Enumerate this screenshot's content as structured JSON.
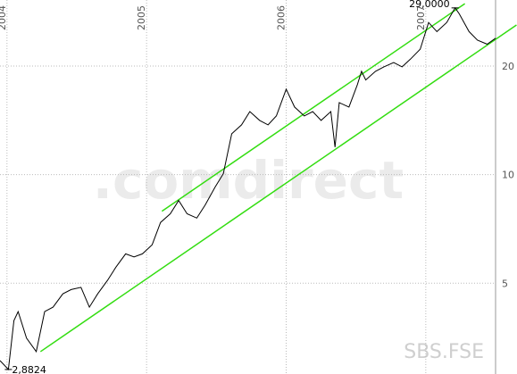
{
  "chart_data": {
    "type": "line",
    "watermark": ".comdirect",
    "symbol": "SBS.FSE",
    "log_scale": true,
    "grid": true,
    "x": [
      2003.95,
      2004.01,
      2004.05,
      2004.08,
      2004.14,
      2004.21,
      2004.27,
      2004.33,
      2004.4,
      2004.46,
      2004.53,
      2004.59,
      2004.65,
      2004.72,
      2004.78,
      2004.85,
      2004.91,
      2004.97,
      2005.04,
      2005.1,
      2005.17,
      2005.23,
      2005.29,
      2005.36,
      2005.42,
      2005.49,
      2005.55,
      2005.61,
      2005.68,
      2005.74,
      2005.81,
      2005.87,
      2005.93,
      2006.0,
      2006.06,
      2006.13,
      2006.19,
      2006.25,
      2006.32,
      2006.35,
      2006.38,
      2006.45,
      2006.51,
      2006.54,
      2006.57,
      2006.64,
      2006.7,
      2006.77,
      2006.83,
      2006.89,
      2006.96,
      2007.02,
      2007.08,
      2007.15,
      2007.21,
      2007.24,
      2007.31,
      2007.37,
      2007.44,
      2007.5
    ],
    "series": [
      {
        "color": "#000000",
        "values": [
          3.05,
          2.8824,
          3.94,
          4.17,
          3.52,
          3.23,
          4.17,
          4.29,
          4.67,
          4.8,
          4.87,
          4.29,
          4.67,
          5.09,
          5.54,
          6.03,
          5.91,
          6.03,
          6.39,
          7.37,
          7.79,
          8.48,
          7.79,
          7.58,
          8.24,
          9.23,
          10.06,
          12.98,
          13.74,
          14.96,
          14.14,
          13.74,
          14.55,
          17.26,
          15.4,
          14.55,
          14.96,
          14.14,
          14.96,
          11.92,
          15.84,
          15.4,
          17.76,
          19.34,
          18.3,
          19.34,
          19.9,
          20.46,
          19.9,
          20.9,
          22.28,
          26.42,
          24.93,
          26.42,
          29.0,
          27.9,
          24.93,
          23.6,
          23.0,
          23.9
        ]
      }
    ],
    "trend_lines": [
      {
        "color": "#33dd11",
        "x": [
          2004.24,
          2007.65
        ],
        "values": [
          3.23,
          26.0
        ]
      },
      {
        "color": "#33dd11",
        "x": [
          2005.11,
          2007.28
        ],
        "values": [
          7.92,
          29.8
        ]
      }
    ],
    "annotations": [
      {
        "x": 2007.21,
        "value": 29.0,
        "label": "29,0000"
      },
      {
        "x": 2004.01,
        "value": 2.8824,
        "label": "2,8824"
      }
    ],
    "xlim": [
      2003.95,
      2007.5
    ],
    "xticks": [
      2004,
      2005,
      2006,
      2007
    ],
    "ylim": [
      2.8,
      30.5
    ],
    "yticks": [
      5,
      10,
      20
    ]
  }
}
